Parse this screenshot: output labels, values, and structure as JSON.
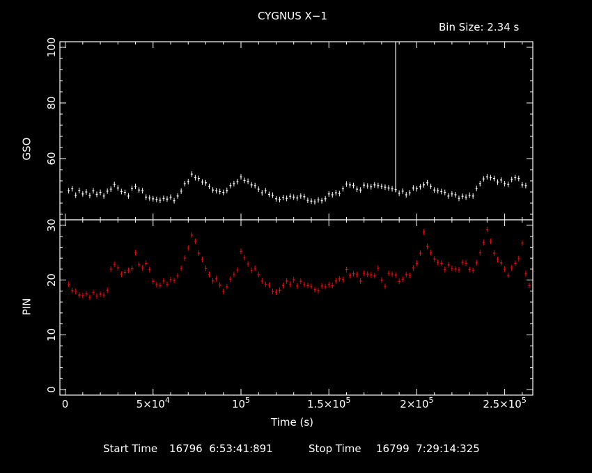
{
  "header": {
    "title": "CYGNUS X−1",
    "bin_size": "Bin Size: 2.34 s"
  },
  "footer": {
    "start_label": "Start Time",
    "start_value": "16796  6:53:41:891",
    "stop_label": "Stop Time",
    "stop_value": "16799  7:29:14:325"
  },
  "colors": {
    "background": "#000000",
    "axes": "#ffffff",
    "gso": "#ffffff",
    "pin": "#ff0000"
  },
  "chart_data": [
    {
      "type": "scatter",
      "name": "gso-panel",
      "ylabel": "GSO",
      "xlim": [
        -3000,
        266000
      ],
      "ylim": [
        38,
        102
      ],
      "yticks": [
        60,
        80,
        100
      ],
      "x_ticks_shown": false,
      "series": [
        {
          "color": "#ffffff",
          "error_bars": true,
          "points": [
            [
              2000,
              48
            ],
            [
              4000,
              49
            ],
            [
              6000,
              47
            ],
            [
              8000,
              49
            ],
            [
              10000,
              47
            ],
            [
              12000,
              48
            ],
            [
              14000,
              47
            ],
            [
              16000,
              48
            ],
            [
              18000,
              47
            ],
            [
              20000,
              48
            ],
            [
              22000,
              47
            ],
            [
              24000,
              48
            ],
            [
              26000,
              49
            ],
            [
              28000,
              51
            ],
            [
              30000,
              49
            ],
            [
              32000,
              48
            ],
            [
              34000,
              48
            ],
            [
              36000,
              47
            ],
            [
              38000,
              49
            ],
            [
              40000,
              50
            ],
            [
              42000,
              49
            ],
            [
              44000,
              48
            ],
            [
              46000,
              46
            ],
            [
              48000,
              46
            ],
            [
              50000,
              46
            ],
            [
              52000,
              45
            ],
            [
              54000,
              45
            ],
            [
              56000,
              46
            ],
            [
              58000,
              45
            ],
            [
              60000,
              46
            ],
            [
              62000,
              45
            ],
            [
              64000,
              47
            ],
            [
              66000,
              48
            ],
            [
              68000,
              51
            ],
            [
              70000,
              52
            ],
            [
              72000,
              54
            ],
            [
              74000,
              53
            ],
            [
              76000,
              53
            ],
            [
              78000,
              52
            ],
            [
              80000,
              51
            ],
            [
              82000,
              50
            ],
            [
              84000,
              49
            ],
            [
              86000,
              48
            ],
            [
              88000,
              48
            ],
            [
              90000,
              48
            ],
            [
              92000,
              49
            ],
            [
              94000,
              50
            ],
            [
              96000,
              51
            ],
            [
              98000,
              52
            ],
            [
              100000,
              53
            ],
            [
              102000,
              52
            ],
            [
              104000,
              52
            ],
            [
              106000,
              51
            ],
            [
              108000,
              50
            ],
            [
              110000,
              49
            ],
            [
              112000,
              48
            ],
            [
              114000,
              48
            ],
            [
              116000,
              47
            ],
            [
              118000,
              47
            ],
            [
              120000,
              46
            ],
            [
              122000,
              45
            ],
            [
              124000,
              46
            ],
            [
              126000,
              46
            ],
            [
              128000,
              46
            ],
            [
              130000,
              46
            ],
            [
              132000,
              46
            ],
            [
              134000,
              47
            ],
            [
              136000,
              46
            ],
            [
              138000,
              45
            ],
            [
              140000,
              45
            ],
            [
              142000,
              44
            ],
            [
              144000,
              45
            ],
            [
              146000,
              45
            ],
            [
              148000,
              46
            ],
            [
              150000,
              47
            ],
            [
              152000,
              47
            ],
            [
              154000,
              48
            ],
            [
              156000,
              47
            ],
            [
              158000,
              49
            ],
            [
              160000,
              51
            ],
            [
              162000,
              51
            ],
            [
              164000,
              50
            ],
            [
              166000,
              49
            ],
            [
              168000,
              49
            ],
            [
              170000,
              50
            ],
            [
              172000,
              50
            ],
            [
              174000,
              50
            ],
            [
              176000,
              51
            ],
            [
              178000,
              50
            ],
            [
              180000,
              50
            ],
            [
              182000,
              50
            ],
            [
              184000,
              49
            ],
            [
              186000,
              49
            ],
            [
              188000,
              49
            ],
            [
              190000,
              48
            ],
            [
              192000,
              48
            ],
            [
              194000,
              47
            ],
            [
              196000,
              48
            ],
            [
              198000,
              49
            ],
            [
              200000,
              49
            ],
            [
              202000,
              50
            ],
            [
              204000,
              51
            ],
            [
              206000,
              51
            ],
            [
              208000,
              50
            ],
            [
              210000,
              49
            ],
            [
              212000,
              48
            ],
            [
              214000,
              48
            ],
            [
              216000,
              48
            ],
            [
              218000,
              47
            ],
            [
              220000,
              47
            ],
            [
              222000,
              47
            ],
            [
              224000,
              46
            ],
            [
              226000,
              46
            ],
            [
              228000,
              46
            ],
            [
              230000,
              47
            ],
            [
              232000,
              47
            ],
            [
              234000,
              49
            ],
            [
              236000,
              51
            ],
            [
              238000,
              53
            ],
            [
              240000,
              53
            ],
            [
              242000,
              53
            ],
            [
              244000,
              53
            ],
            [
              246000,
              52
            ],
            [
              248000,
              52
            ],
            [
              250000,
              51
            ],
            [
              252000,
              51
            ],
            [
              254000,
              52
            ],
            [
              256000,
              53
            ],
            [
              258000,
              53
            ],
            [
              260000,
              51
            ],
            [
              262000,
              50
            ]
          ],
          "spike": {
            "x": 188000,
            "y_from": 48,
            "y_to": 102
          }
        }
      ]
    },
    {
      "type": "scatter",
      "name": "pin-panel",
      "ylabel": "PIN",
      "xlabel": "Time (s)",
      "xlim": [
        -3000,
        266000
      ],
      "ylim": [
        -1,
        31
      ],
      "yticks": [
        0,
        10,
        20,
        30
      ],
      "xticks": [
        0,
        50000,
        100000,
        150000,
        200000,
        250000
      ],
      "series": [
        {
          "color": "#ff0000",
          "error_bars": true,
          "points": [
            [
              2000,
              19
            ],
            [
              4000,
              18
            ],
            [
              6000,
              18
            ],
            [
              8000,
              17.5
            ],
            [
              10000,
              17
            ],
            [
              12000,
              17.5
            ],
            [
              14000,
              17
            ],
            [
              16000,
              17.5
            ],
            [
              18000,
              17
            ],
            [
              20000,
              17.5
            ],
            [
              22000,
              17.5
            ],
            [
              24000,
              18
            ],
            [
              26000,
              22
            ],
            [
              28000,
              23
            ],
            [
              30000,
              22
            ],
            [
              32000,
              21
            ],
            [
              34000,
              21.5
            ],
            [
              36000,
              22
            ],
            [
              38000,
              22
            ],
            [
              40000,
              25
            ],
            [
              42000,
              23
            ],
            [
              44000,
              22
            ],
            [
              46000,
              23
            ],
            [
              48000,
              22
            ],
            [
              50000,
              20
            ],
            [
              52000,
              19
            ],
            [
              54000,
              19
            ],
            [
              56000,
              20
            ],
            [
              58000,
              19
            ],
            [
              60000,
              20
            ],
            [
              62000,
              20
            ],
            [
              64000,
              21
            ],
            [
              66000,
              22
            ],
            [
              68000,
              24
            ],
            [
              70000,
              26
            ],
            [
              72000,
              28
            ],
            [
              74000,
              27
            ],
            [
              76000,
              25
            ],
            [
              78000,
              24
            ],
            [
              80000,
              22
            ],
            [
              82000,
              21
            ],
            [
              84000,
              20
            ],
            [
              86000,
              20
            ],
            [
              88000,
              19
            ],
            [
              90000,
              18
            ],
            [
              92000,
              19
            ],
            [
              94000,
              20
            ],
            [
              96000,
              21
            ],
            [
              98000,
              22
            ],
            [
              100000,
              25
            ],
            [
              102000,
              24
            ],
            [
              104000,
              23
            ],
            [
              106000,
              22
            ],
            [
              108000,
              22
            ],
            [
              110000,
              21
            ],
            [
              112000,
              20
            ],
            [
              114000,
              19
            ],
            [
              116000,
              19
            ],
            [
              118000,
              18
            ],
            [
              120000,
              18
            ],
            [
              122000,
              18
            ],
            [
              124000,
              19
            ],
            [
              126000,
              20
            ],
            [
              128000,
              19
            ],
            [
              130000,
              20
            ],
            [
              132000,
              19
            ],
            [
              134000,
              20
            ],
            [
              136000,
              19
            ],
            [
              138000,
              19
            ],
            [
              140000,
              19
            ],
            [
              142000,
              18
            ],
            [
              144000,
              18
            ],
            [
              146000,
              19
            ],
            [
              148000,
              19
            ],
            [
              150000,
              19
            ],
            [
              152000,
              19
            ],
            [
              154000,
              20
            ],
            [
              156000,
              20
            ],
            [
              158000,
              20
            ],
            [
              160000,
              22
            ],
            [
              162000,
              21
            ],
            [
              164000,
              21
            ],
            [
              166000,
              21
            ],
            [
              168000,
              20
            ],
            [
              170000,
              21
            ],
            [
              172000,
              21
            ],
            [
              174000,
              21
            ],
            [
              176000,
              21
            ],
            [
              178000,
              22
            ],
            [
              180000,
              20
            ],
            [
              182000,
              19
            ],
            [
              184000,
              21
            ],
            [
              186000,
              21
            ],
            [
              188000,
              21
            ],
            [
              190000,
              20
            ],
            [
              192000,
              20
            ],
            [
              194000,
              21
            ],
            [
              196000,
              21
            ],
            [
              198000,
              22
            ],
            [
              200000,
              23
            ],
            [
              202000,
              25
            ],
            [
              204000,
              29
            ],
            [
              206000,
              26
            ],
            [
              208000,
              25
            ],
            [
              210000,
              24
            ],
            [
              212000,
              23
            ],
            [
              214000,
              23
            ],
            [
              216000,
              22
            ],
            [
              218000,
              23
            ],
            [
              220000,
              22
            ],
            [
              222000,
              22
            ],
            [
              224000,
              22
            ],
            [
              226000,
              23
            ],
            [
              228000,
              23
            ],
            [
              230000,
              22
            ],
            [
              232000,
              22
            ],
            [
              234000,
              23
            ],
            [
              236000,
              25
            ],
            [
              238000,
              27
            ],
            [
              240000,
              29
            ],
            [
              242000,
              27
            ],
            [
              244000,
              25
            ],
            [
              246000,
              24
            ],
            [
              248000,
              23
            ],
            [
              250000,
              22
            ],
            [
              252000,
              21
            ],
            [
              254000,
              22
            ],
            [
              256000,
              23
            ],
            [
              258000,
              24
            ],
            [
              260000,
              27
            ],
            [
              262000,
              21
            ],
            [
              264000,
              19
            ]
          ]
        }
      ]
    }
  ]
}
